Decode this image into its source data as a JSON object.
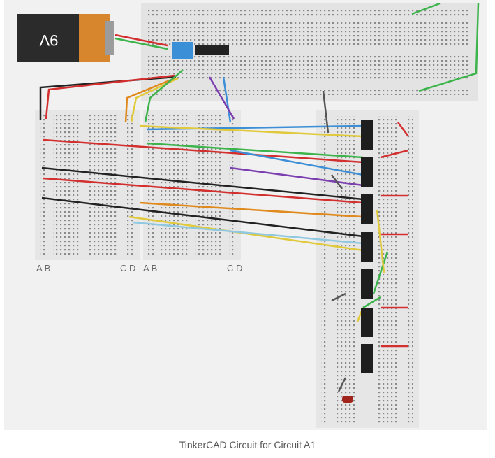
{
  "battery": {
    "label": "9V"
  },
  "breadboards": [
    {
      "left_labels": "A B",
      "right_labels": "C D"
    },
    {
      "left_labels": "A B",
      "right_labels": "C D"
    }
  ],
  "caption": "TinkerCAD Circuit for Circuit A1"
}
